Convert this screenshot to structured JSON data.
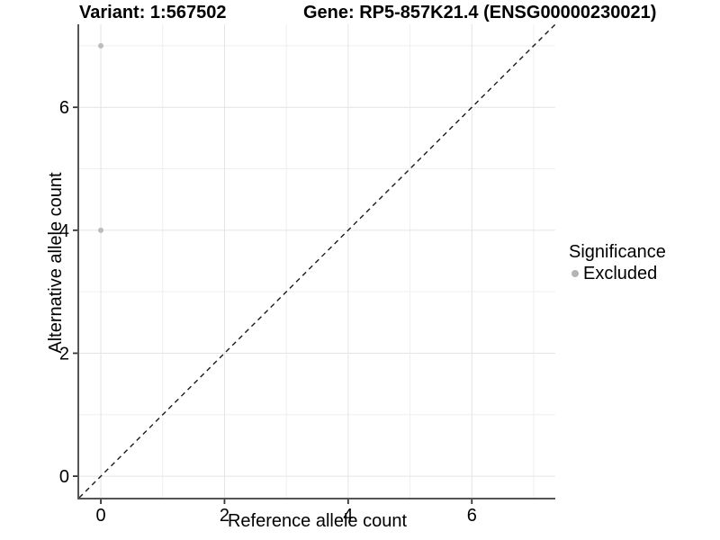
{
  "chart_data": {
    "type": "scatter",
    "title_left": "Variant: 1:567502",
    "title_right": "Gene: RP5-857K21.4 (ENSG00000230021)",
    "xlabel": "Reference allele count",
    "ylabel": "Alternative allele count",
    "xlim": [
      -0.35,
      7.35
    ],
    "ylim": [
      -0.35,
      7.35
    ],
    "x_ticks": [
      0,
      2,
      4,
      6
    ],
    "y_ticks": [
      0,
      2,
      4,
      6
    ],
    "x_minor_gridlines": [
      1,
      3,
      5,
      7
    ],
    "y_minor_gridlines": [
      1,
      3,
      5,
      7
    ],
    "grid": "major and minor, light grey on white",
    "series": [
      {
        "name": "Excluded",
        "color": "#bcbcbc",
        "points": [
          {
            "x": 0,
            "y": 7
          },
          {
            "x": 0,
            "y": 4
          }
        ]
      }
    ],
    "reference_line": {
      "type": "identity y=x",
      "style": "dashed",
      "color": "#1a1a1a"
    },
    "legend": {
      "title": "Significance",
      "position": "right",
      "items": [
        {
          "label": "Excluded",
          "color": "#b5b5b5"
        }
      ]
    }
  },
  "colors": {
    "background": "#ffffff",
    "grid_major": "#e4e4e4",
    "grid_minor": "#efefef",
    "axis_line": "#555555",
    "tick": "#333333",
    "text": "#000000"
  }
}
